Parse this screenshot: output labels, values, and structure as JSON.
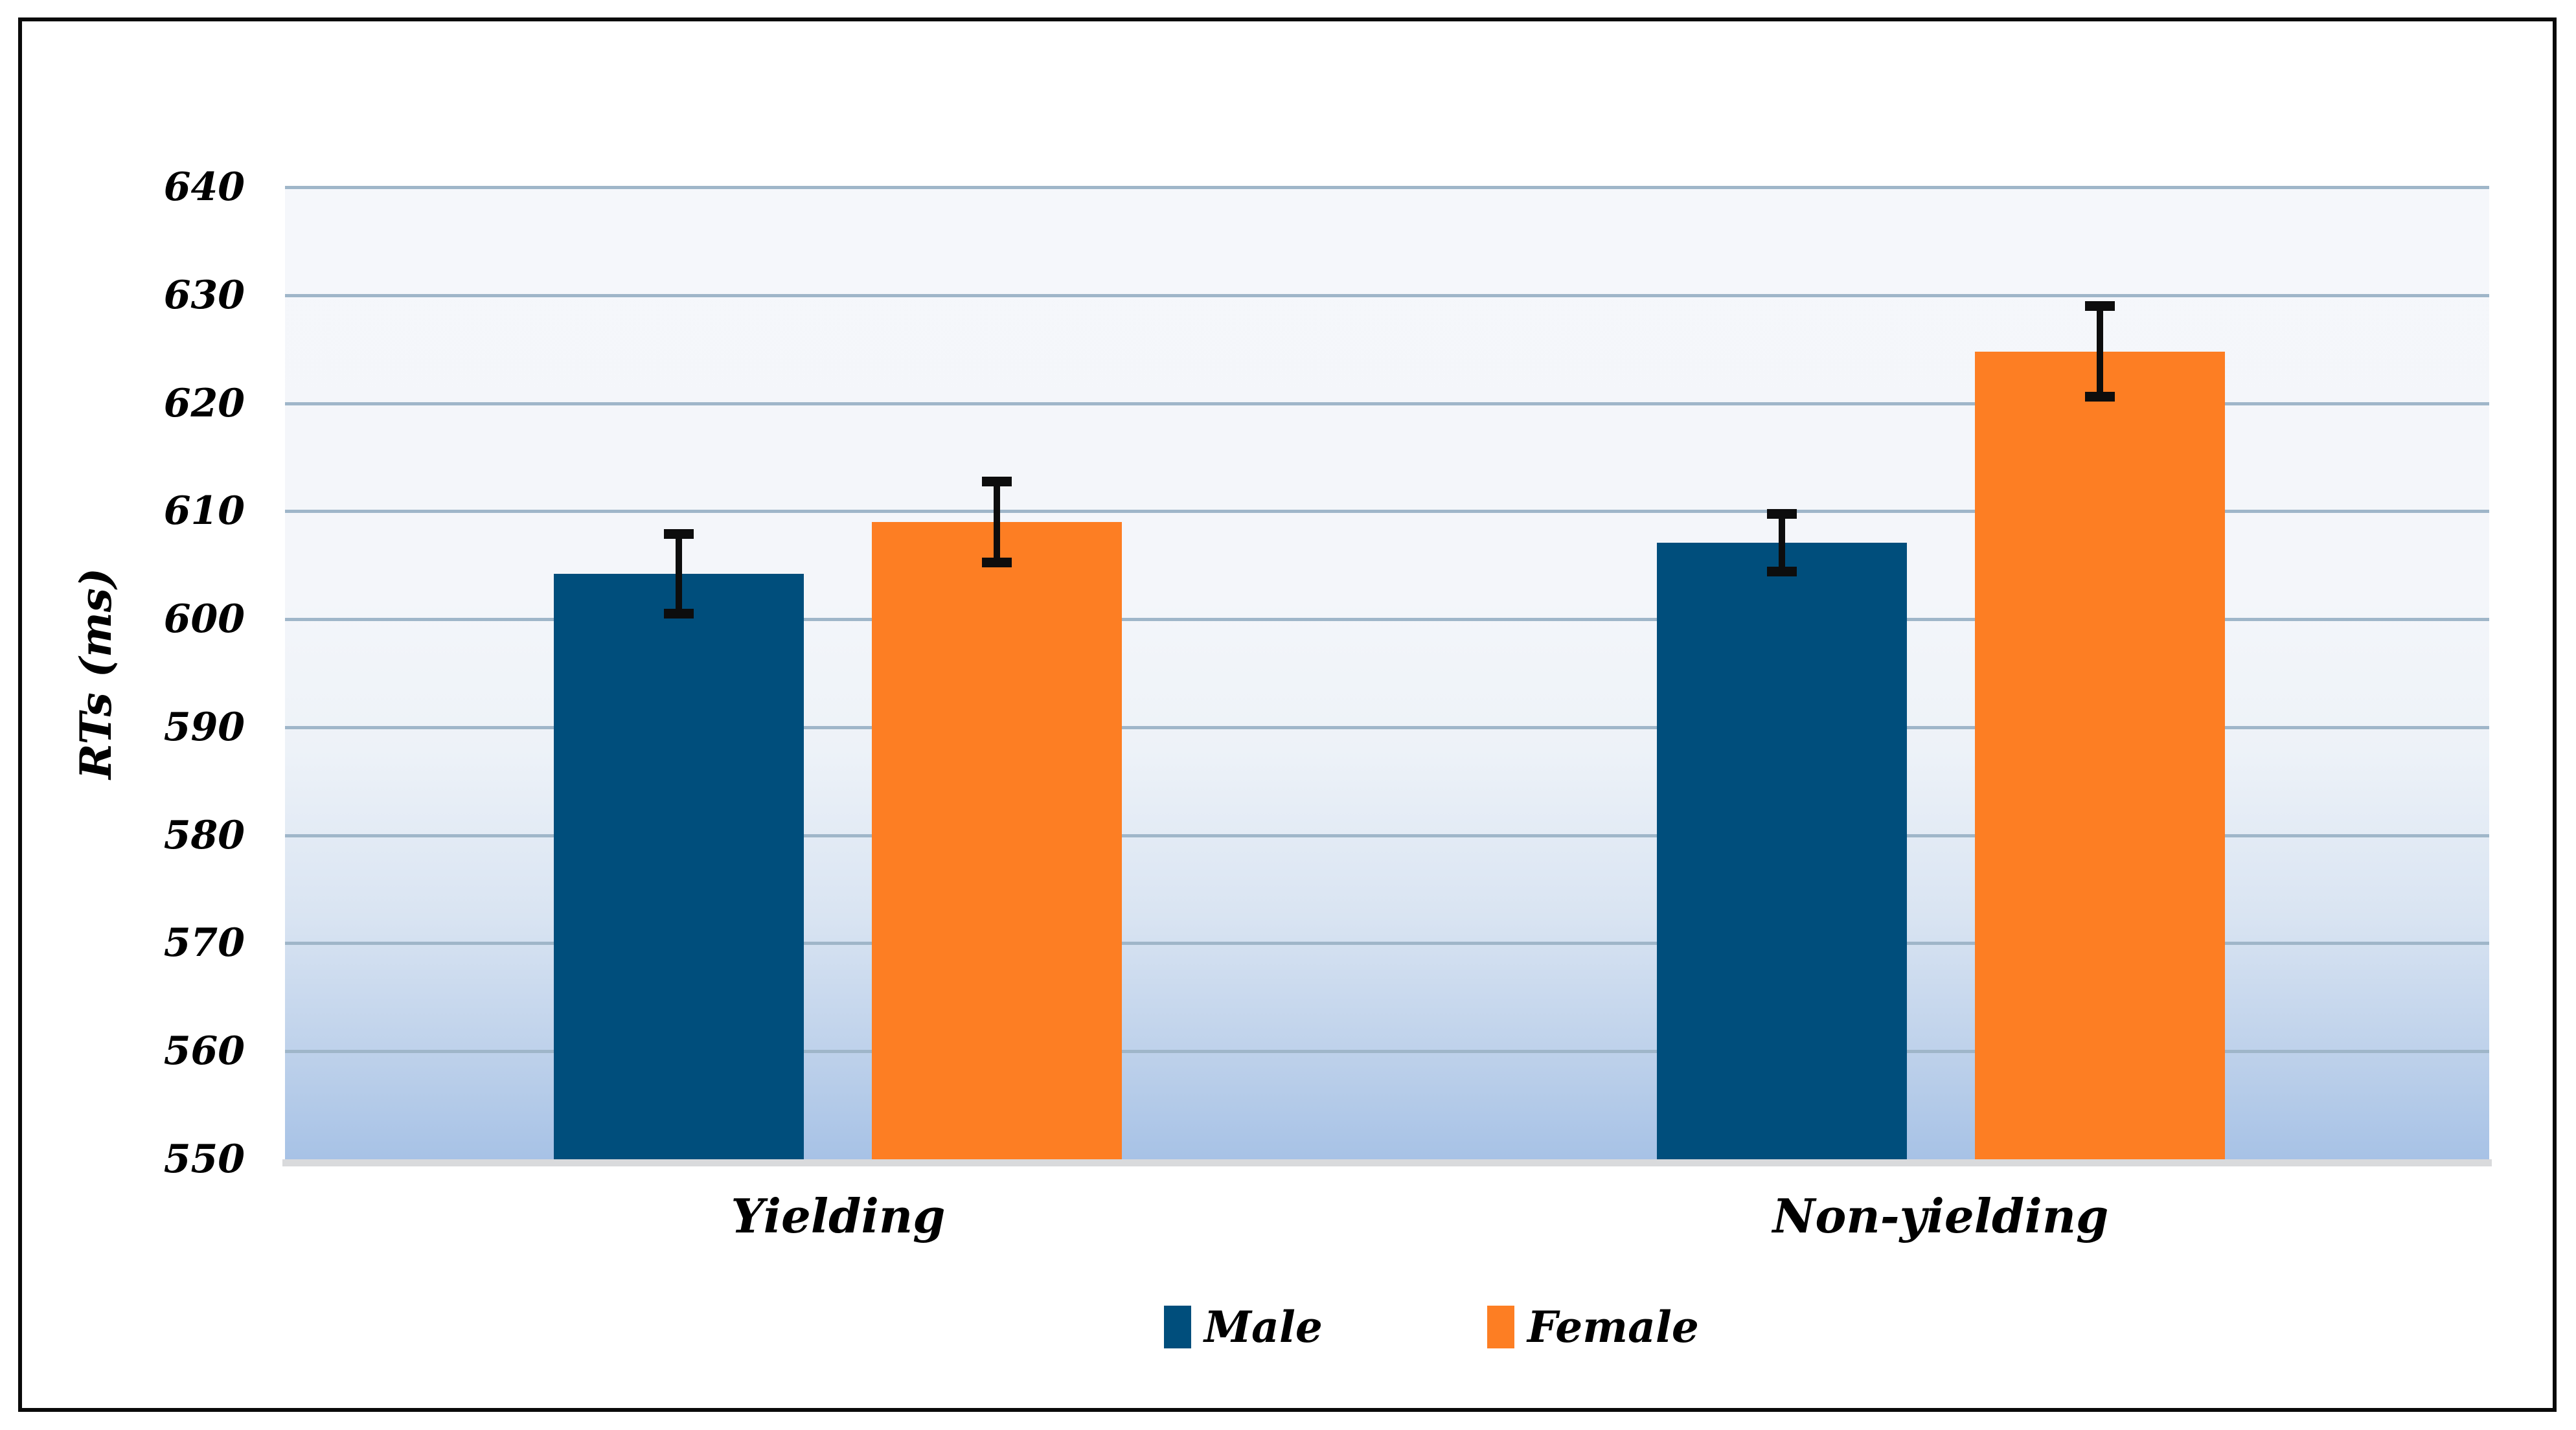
{
  "chart_data": {
    "type": "bar",
    "title": "",
    "xlabel": "",
    "ylabel": "RTs (ms)",
    "categories": [
      "Yielding",
      "Non-yielding"
    ],
    "series": [
      {
        "name": "Male",
        "color": "#004e7c",
        "values": [
          604.2,
          607.1
        ],
        "errors": [
          3.7,
          2.7
        ]
      },
      {
        "name": "Female",
        "color": "#fd7e23",
        "values": [
          609.0,
          624.8
        ],
        "errors": [
          3.8,
          4.2
        ]
      }
    ],
    "y_axis": {
      "min": 550,
      "max": 640,
      "step": 10,
      "tick_labels": [
        "550",
        "560",
        "570",
        "580",
        "590",
        "600",
        "610",
        "620",
        "630",
        "640"
      ]
    },
    "grid": true,
    "legend_position": "bottom",
    "error_bar_color": "#0d0d0d",
    "gridline_color": "#9fb6c9"
  }
}
